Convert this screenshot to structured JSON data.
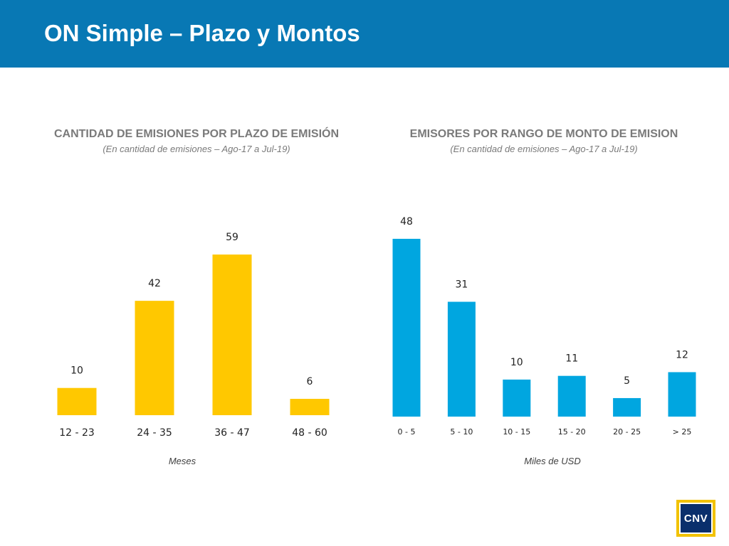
{
  "header": {
    "title": "ON Simple – Plazo y Montos"
  },
  "logo": {
    "text": "CNV"
  },
  "colors": {
    "header": "#0878b4",
    "left_bars": "#ffc800",
    "right_bars": "#00a6e0"
  },
  "chart_data": [
    {
      "type": "bar",
      "title": "CANTIDAD DE EMISIONES POR PLAZO DE EMISIÓN",
      "subtitle": "(En cantidad de emisiones – Ago-17 a Jul-19)",
      "xlabel": "Meses",
      "ylabel": "",
      "categories": [
        "12 - 23",
        "24 - 35",
        "36 - 47",
        "48 - 60"
      ],
      "values": [
        10,
        42,
        59,
        6
      ],
      "color": "#ffc800",
      "grid": false,
      "data_labels": true
    },
    {
      "type": "bar",
      "title": "EMISORES POR RANGO DE MONTO DE EMISION",
      "subtitle": "(En cantidad de emisiones – Ago-17 a Jul-19)",
      "xlabel": "Miles de USD",
      "ylabel": "",
      "categories": [
        "0 - 5",
        "5 - 10",
        "10 - 15",
        "15 - 20",
        "20 - 25",
        "> 25"
      ],
      "values": [
        48,
        31,
        10,
        11,
        5,
        12
      ],
      "color": "#00a6e0",
      "grid": false,
      "data_labels": true
    }
  ]
}
